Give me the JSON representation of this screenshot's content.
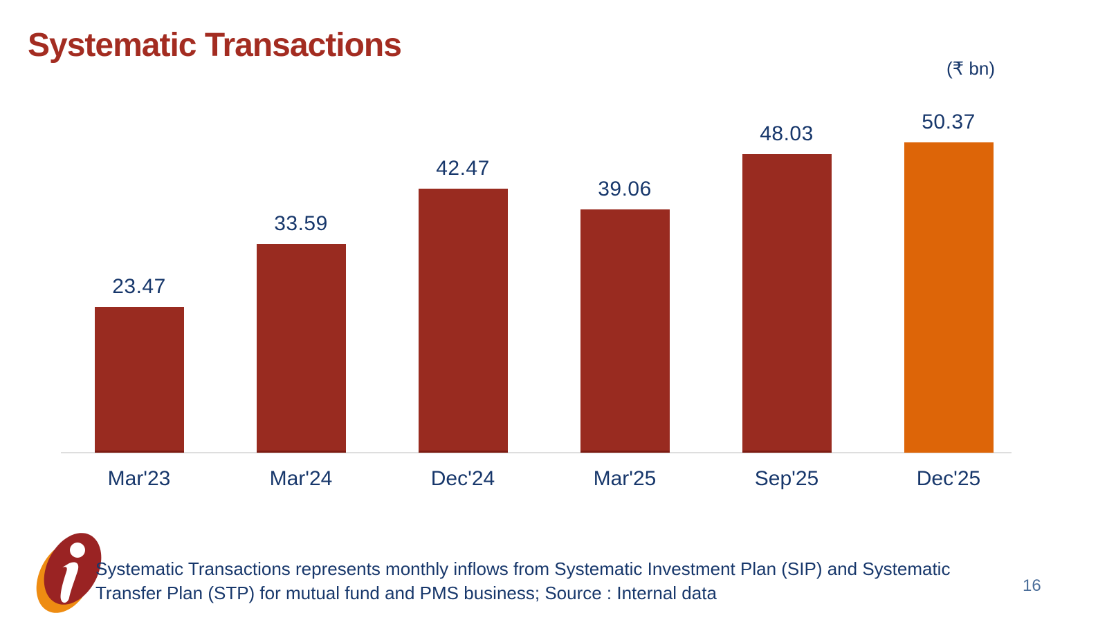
{
  "title": "Systematic Transactions",
  "unit_label": "(₹ bn)",
  "page_number": "16",
  "footnote": {
    "line1": "Systematic Transactions represents monthly inflows from Systematic Investment Plan (SIP) and Systematic",
    "line2": "Transfer Plan (STP) for mutual fund and PMS business; Source : Internal data"
  },
  "logo": {
    "name": "icici-i-logo"
  },
  "colors": {
    "title_red": "#a32c21",
    "bar_red": "#992b20",
    "bar_orange": "#dd6508",
    "navy_text": "#17376b",
    "axis_gray": "#dedede",
    "page_number_gray_blue": "#4a6d99"
  },
  "chart_data": {
    "type": "bar",
    "title": "Systematic Transactions",
    "ylabel": "(₹ bn)",
    "categories": [
      "Mar'23",
      "Mar'24",
      "Dec'24",
      "Mar'25",
      "Sep'25",
      "Dec'25"
    ],
    "values": [
      23.47,
      33.59,
      42.47,
      39.06,
      48.03,
      50.37
    ],
    "value_labels": [
      "23.47",
      "33.59",
      "42.47",
      "39.06",
      "48.03",
      "50.37"
    ],
    "bar_colors": [
      "#992b20",
      "#992b20",
      "#992b20",
      "#992b20",
      "#992b20",
      "#dd6508"
    ],
    "highlight_index": 5,
    "ylim": [
      0,
      55
    ],
    "grid": false,
    "legend": false,
    "data_labels_position": "above-bars"
  }
}
